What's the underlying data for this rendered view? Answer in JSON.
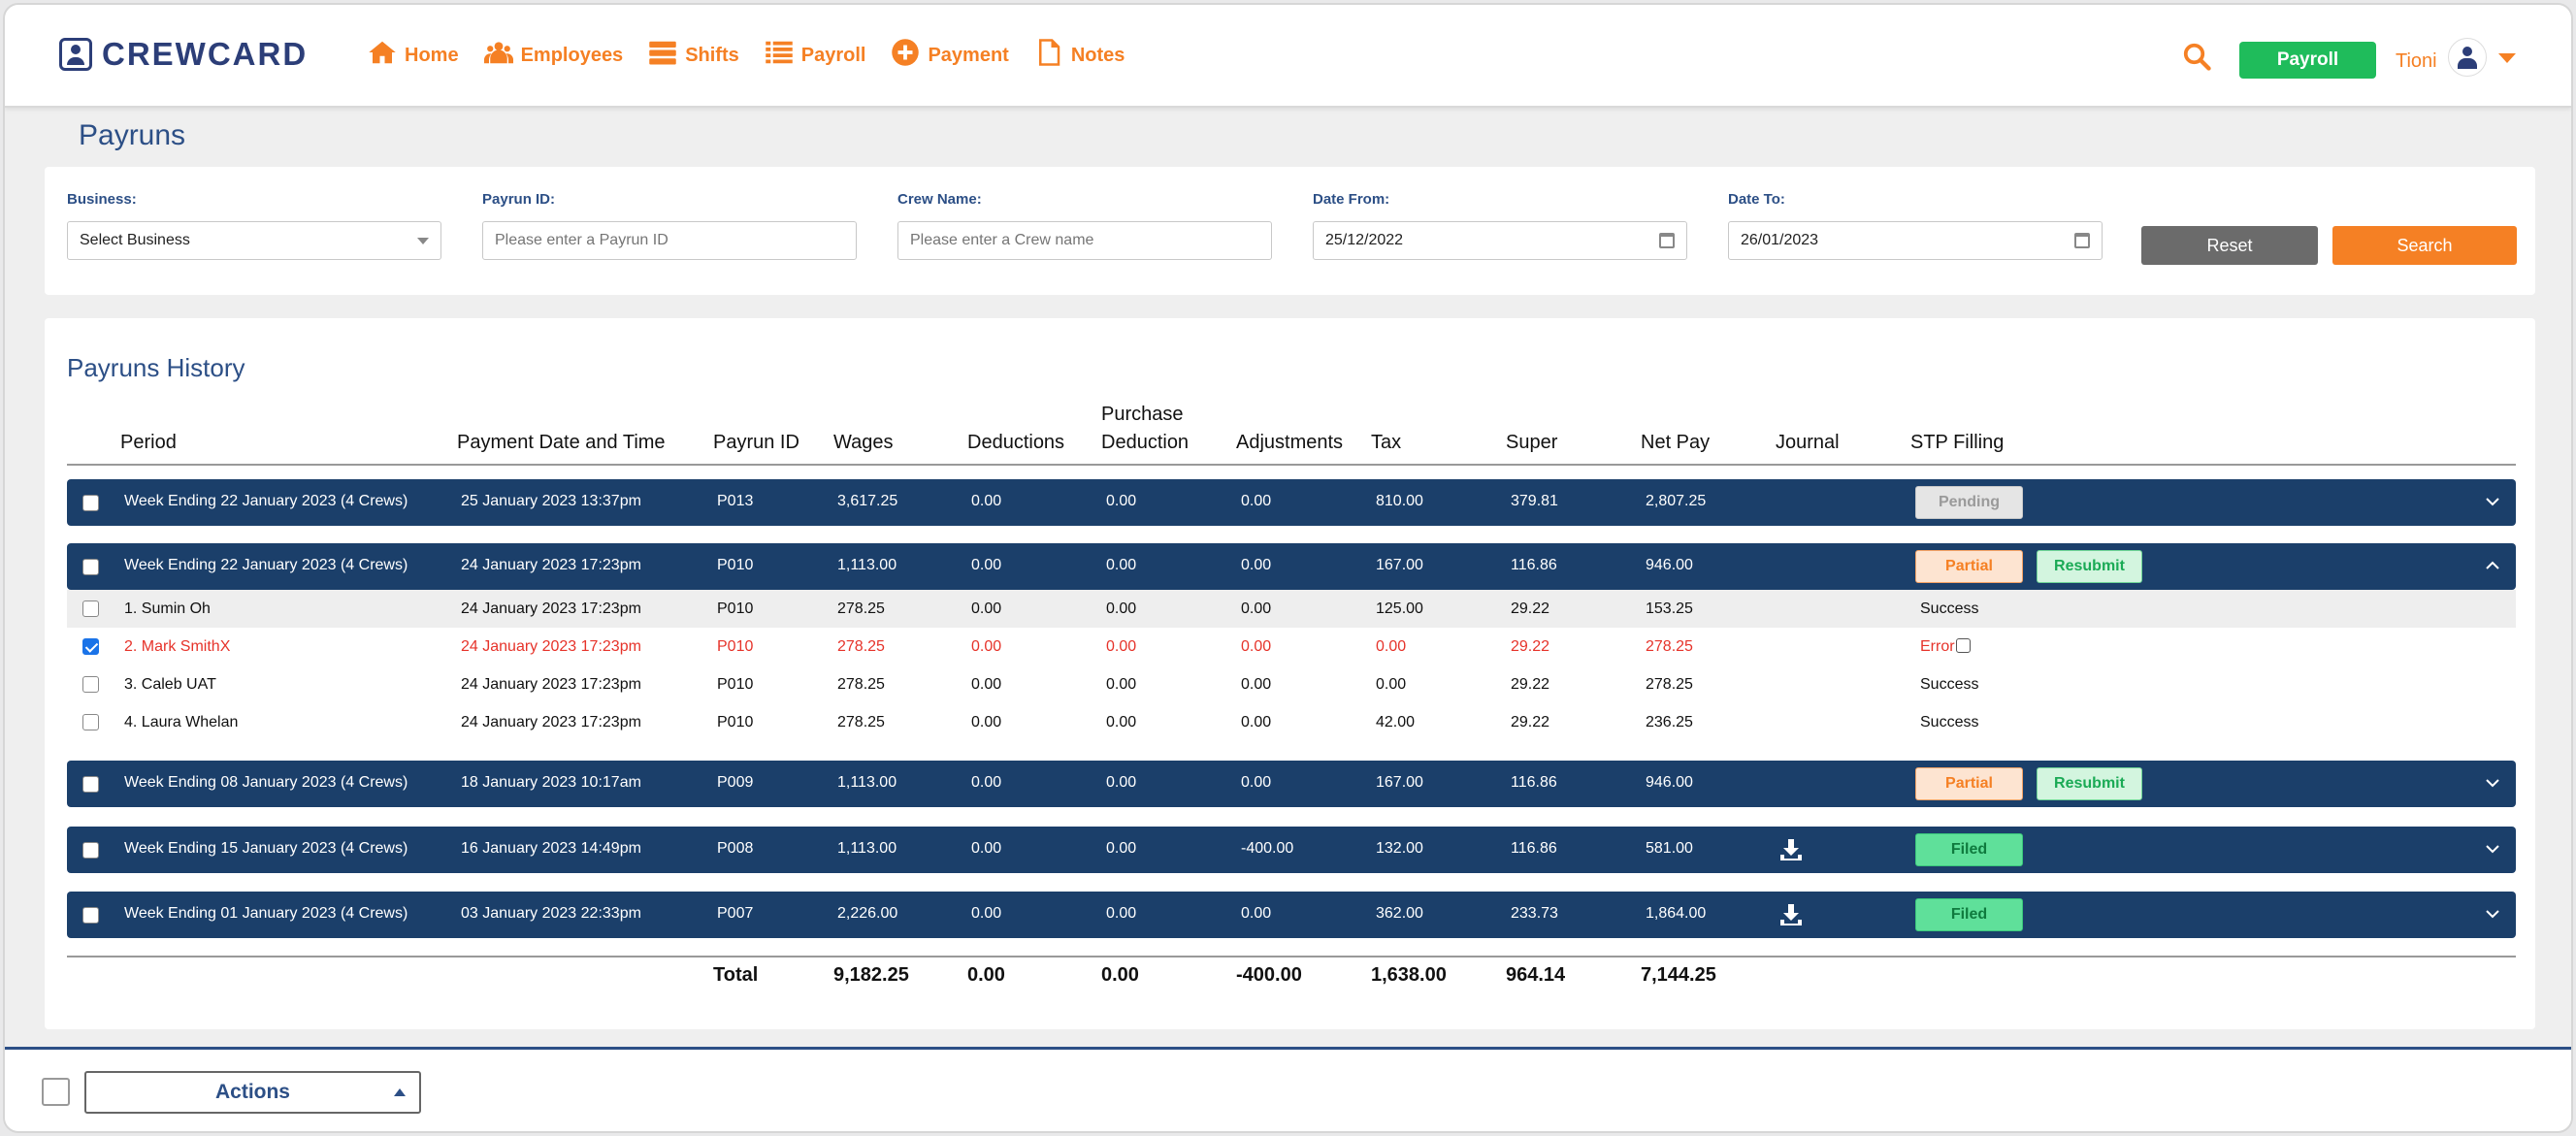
{
  "app": {
    "logo_text": "CREWCARD",
    "user_name": "Tioni",
    "payroll_button": "Payroll"
  },
  "nav": [
    {
      "label": "Home",
      "icon": "home-icon"
    },
    {
      "label": "Employees",
      "icon": "users-icon"
    },
    {
      "label": "Shifts",
      "icon": "shifts-icon"
    },
    {
      "label": "Payroll",
      "icon": "list-icon"
    },
    {
      "label": "Payment",
      "icon": "plus-circle-icon"
    },
    {
      "label": "Notes",
      "icon": "document-icon"
    }
  ],
  "page_title": "Payruns",
  "filters": {
    "business": {
      "label": "Business:",
      "value": "Select Business"
    },
    "payrun_id": {
      "label": "Payrun ID:",
      "placeholder": "Please enter a Payrun ID"
    },
    "crew_name": {
      "label": "Crew Name:",
      "placeholder": "Please enter a Crew name"
    },
    "date_from": {
      "label": "Date From:",
      "value": "25/12/2022"
    },
    "date_to": {
      "label": "Date To:",
      "value": "26/01/2023"
    },
    "reset": "Reset",
    "search": "Search"
  },
  "history": {
    "title": "Payruns History",
    "columns": {
      "period": "Period",
      "payment_date": "Payment Date and Time",
      "payrun_id": "Payrun ID",
      "wages": "Wages",
      "deductions": "Deductions",
      "purchase_1": "Purchase",
      "purchase_2": "Deduction",
      "adjustments": "Adjustments",
      "tax": "Tax",
      "super": "Super",
      "net_pay": "Net Pay",
      "journal": "Journal",
      "stp": "STP Filling"
    },
    "groups": [
      {
        "period": "Week Ending 22 January 2023 (4 Crews)",
        "date": "25 January 2023 13:37pm",
        "id": "P013",
        "wages": "3,617.25",
        "deductions": "0.00",
        "purchase": "0.00",
        "adjustments": "0.00",
        "tax": "810.00",
        "super": "379.81",
        "net": "2,807.25",
        "status": "Pending"
      },
      {
        "period": "Week Ending 22 January 2023 (4 Crews)",
        "date": "24 January 2023 17:23pm",
        "id": "P010",
        "wages": "1,113.00",
        "deductions": "0.00",
        "purchase": "0.00",
        "adjustments": "0.00",
        "tax": "167.00",
        "super": "116.86",
        "net": "946.00",
        "status": "Partial",
        "resubmit": "Resubmit"
      },
      {
        "period": "Week Ending 08 January 2023 (4 Crews)",
        "date": "18 January 2023 10:17am",
        "id": "P009",
        "wages": "1,113.00",
        "deductions": "0.00",
        "purchase": "0.00",
        "adjustments": "0.00",
        "tax": "167.00",
        "super": "116.86",
        "net": "946.00",
        "status": "Partial",
        "resubmit": "Resubmit"
      },
      {
        "period": "Week Ending 15 January 2023 (4 Crews)",
        "date": "16 January 2023 14:49pm",
        "id": "P008",
        "wages": "1,113.00",
        "deductions": "0.00",
        "purchase": "0.00",
        "adjustments": "-400.00",
        "tax": "132.00",
        "super": "116.86",
        "net": "581.00",
        "status": "Filed"
      },
      {
        "period": "Week Ending 01 January 2023 (4 Crews)",
        "date": "03 January 2023 22:33pm",
        "id": "P007",
        "wages": "2,226.00",
        "deductions": "0.00",
        "purchase": "0.00",
        "adjustments": "0.00",
        "tax": "362.00",
        "super": "233.73",
        "net": "1,864.00",
        "status": "Filed"
      }
    ],
    "sub_rows": [
      {
        "name": "1. Sumin Oh",
        "date": "24 January 2023 17:23pm",
        "id": "P010",
        "wages": "278.25",
        "deductions": "0.00",
        "purchase": "0.00",
        "adjustments": "0.00",
        "tax": "125.00",
        "super": "29.22",
        "net": "153.25",
        "status": "Success"
      },
      {
        "name": "2. Mark SmithX",
        "date": "24 January 2023 17:23pm",
        "id": "P010",
        "wages": "278.25",
        "deductions": "0.00",
        "purchase": "0.00",
        "adjustments": "0.00",
        "tax": "0.00",
        "super": "29.22",
        "net": "278.25",
        "status": "Error"
      },
      {
        "name": "3. Caleb UAT",
        "date": "24 January 2023 17:23pm",
        "id": "P010",
        "wages": "278.25",
        "deductions": "0.00",
        "purchase": "0.00",
        "adjustments": "0.00",
        "tax": "0.00",
        "super": "29.22",
        "net": "278.25",
        "status": "Success"
      },
      {
        "name": "4. Laura Whelan",
        "date": "24 January 2023 17:23pm",
        "id": "P010",
        "wages": "278.25",
        "deductions": "0.00",
        "purchase": "0.00",
        "adjustments": "0.00",
        "tax": "42.00",
        "super": "29.22",
        "net": "236.25",
        "status": "Success"
      }
    ],
    "totals": {
      "label": "Total",
      "wages": "9,182.25",
      "deductions": "0.00",
      "purchase": "0.00",
      "adjustments": "-400.00",
      "tax": "1,638.00",
      "super": "964.14",
      "net": "7,144.25"
    }
  },
  "bottom": {
    "actions": "Actions"
  },
  "colors": {
    "brand_orange": "#f58024",
    "navy": "#1b3f6a",
    "green": "#1fbc5b",
    "error_red": "#e6332a"
  }
}
